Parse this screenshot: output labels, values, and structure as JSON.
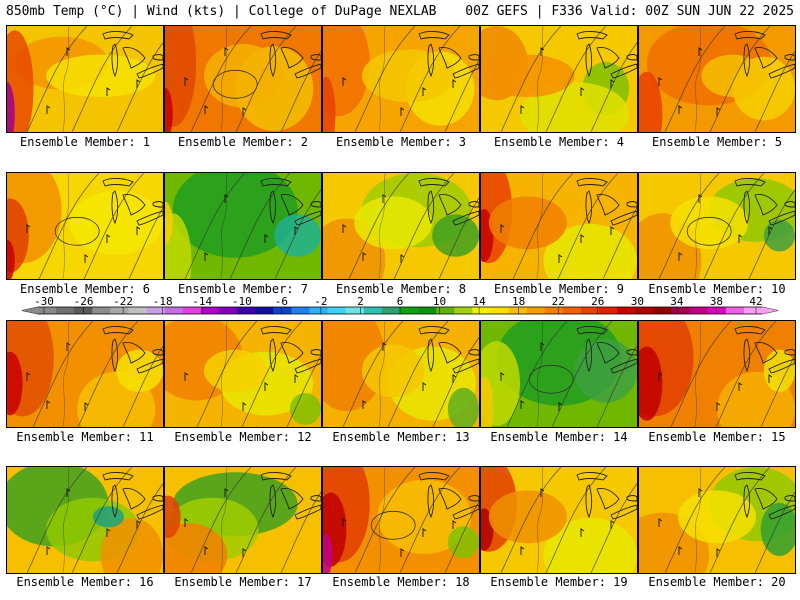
{
  "header": {
    "left": "850mb Temp (°C) | Wind (kts) | College of DuPage NEXLAB",
    "right": "00Z GEFS | F336 Valid: 00Z SUN JUN 22 2025"
  },
  "colorbar": {
    "labels": [
      "-30",
      "-26",
      "-22",
      "-18",
      "-14",
      "-10",
      "-6",
      "-2",
      "2",
      "6",
      "10",
      "14",
      "18",
      "22",
      "26",
      "30",
      "34",
      "38",
      "42"
    ],
    "colors": [
      "#8a8a8a",
      "#707070",
      "#5a5a5a",
      "#8c8c8c",
      "#a8a8a8",
      "#c0c0c0",
      "#c8a0e0",
      "#c070e0",
      "#e040e0",
      "#b000d0",
      "#8000c0",
      "#4000b0",
      "#1010a0",
      "#1040d0",
      "#2080f0",
      "#30b0f0",
      "#40d0f0",
      "#70e0e0",
      "#30c0b0",
      "#30a070",
      "#10a010",
      "#109010",
      "#60b010",
      "#a0d010",
      "#f0f000",
      "#f8e000",
      "#f8c000",
      "#f8a000",
      "#f08000",
      "#f06000",
      "#e84000",
      "#e02000",
      "#c80000",
      "#b00000",
      "#900000",
      "#a00050",
      "#c00080",
      "#e000c0",
      "#f060e0",
      "#f8a0f0"
    ]
  },
  "panels": [
    {
      "label": "Ensemble Member: 1",
      "bg": "#f5c400",
      "blobs": [
        {
          "c": "#f39400",
          "r": 0.35,
          "w": 0.3,
          "h": 0.25
        },
        {
          "c": "#e84a00",
          "r": 0.05,
          "w": 0.12,
          "h": 0.55
        },
        {
          "c": "#a0008a",
          "r": 0.0,
          "w": 0.05,
          "h": 0.3
        },
        {
          "c": "#f6e300",
          "r": 0.6,
          "w": 0.35,
          "h": 0.2
        }
      ]
    },
    {
      "label": "Ensemble Member: 2",
      "bg": "#f07800",
      "blobs": [
        {
          "c": "#e04800",
          "r": 0.05,
          "w": 0.15,
          "h": 0.6
        },
        {
          "c": "#f5c000",
          "r": 0.7,
          "w": 0.25,
          "h": 0.4
        },
        {
          "c": "#c80000",
          "r": 0.0,
          "w": 0.05,
          "h": 0.25
        },
        {
          "c": "#f5b000",
          "r": 0.5,
          "w": 0.25,
          "h": 0.3
        }
      ]
    },
    {
      "label": "Ensemble Member: 3",
      "bg": "#f6a400",
      "blobs": [
        {
          "c": "#f07000",
          "r": 0.1,
          "w": 0.2,
          "h": 0.5
        },
        {
          "c": "#f6e000",
          "r": 0.75,
          "w": 0.22,
          "h": 0.35
        },
        {
          "c": "#e84000",
          "r": 0.02,
          "w": 0.06,
          "h": 0.35
        },
        {
          "c": "#f5c800",
          "r": 0.55,
          "w": 0.3,
          "h": 0.25
        }
      ]
    },
    {
      "label": "Ensemble Member: 4",
      "bg": "#f6c800",
      "blobs": [
        {
          "c": "#f08800",
          "r": 0.1,
          "w": 0.2,
          "h": 0.35
        },
        {
          "c": "#80c000",
          "r": 0.8,
          "w": 0.15,
          "h": 0.25
        },
        {
          "c": "#e0e000",
          "r": 0.6,
          "w": 0.35,
          "h": 0.3
        },
        {
          "c": "#f49000",
          "r": 0.3,
          "w": 0.3,
          "h": 0.2
        }
      ]
    },
    {
      "label": "Ensemble Member: 5",
      "bg": "#f39a00",
      "blobs": [
        {
          "c": "#f07000",
          "r": 0.45,
          "w": 0.4,
          "h": 0.4
        },
        {
          "c": "#f6d000",
          "r": 0.8,
          "w": 0.2,
          "h": 0.3
        },
        {
          "c": "#e84000",
          "r": 0.05,
          "w": 0.1,
          "h": 0.4
        },
        {
          "c": "#f6c000",
          "r": 0.6,
          "w": 0.2,
          "h": 0.2
        }
      ]
    },
    {
      "label": "Ensemble Member: 6",
      "bg": "#f6d800",
      "blobs": [
        {
          "c": "#f09000",
          "r": 0.1,
          "w": 0.25,
          "h": 0.5
        },
        {
          "c": "#e04000",
          "r": 0.02,
          "w": 0.12,
          "h": 0.35
        },
        {
          "c": "#c80000",
          "r": 0.0,
          "w": 0.05,
          "h": 0.2
        },
        {
          "c": "#f6e800",
          "r": 0.7,
          "w": 0.3,
          "h": 0.3
        }
      ]
    },
    {
      "label": "Ensemble Member: 7",
      "bg": "#70b800",
      "blobs": [
        {
          "c": "#209c20",
          "r": 0.45,
          "w": 0.4,
          "h": 0.45
        },
        {
          "c": "#20b090",
          "r": 0.85,
          "w": 0.15,
          "h": 0.2
        },
        {
          "c": "#c0d800",
          "r": 0.05,
          "w": 0.12,
          "h": 0.45
        },
        {
          "c": "#f6d000",
          "r": 0.0,
          "w": 0.05,
          "h": 0.2
        }
      ]
    },
    {
      "label": "Ensemble Member: 8",
      "bg": "#f6c800",
      "blobs": [
        {
          "c": "#a0cc00",
          "r": 0.6,
          "w": 0.35,
          "h": 0.35
        },
        {
          "c": "#40a020",
          "r": 0.85,
          "w": 0.15,
          "h": 0.2
        },
        {
          "c": "#f09000",
          "r": 0.15,
          "w": 0.25,
          "h": 0.4
        },
        {
          "c": "#e8e800",
          "r": 0.45,
          "w": 0.25,
          "h": 0.25
        }
      ]
    },
    {
      "label": "Ensemble Member: 9",
      "bg": "#f6b400",
      "blobs": [
        {
          "c": "#e84000",
          "r": 0.05,
          "w": 0.15,
          "h": 0.5
        },
        {
          "c": "#c80000",
          "r": 0.02,
          "w": 0.06,
          "h": 0.25
        },
        {
          "c": "#e8e800",
          "r": 0.7,
          "w": 0.3,
          "h": 0.35
        },
        {
          "c": "#f08000",
          "r": 0.3,
          "w": 0.25,
          "h": 0.25
        }
      ]
    },
    {
      "label": "Ensemble Member: 10",
      "bg": "#f6c800",
      "blobs": [
        {
          "c": "#90c800",
          "r": 0.75,
          "w": 0.3,
          "h": 0.3
        },
        {
          "c": "#40a040",
          "r": 0.9,
          "w": 0.1,
          "h": 0.15
        },
        {
          "c": "#f09000",
          "r": 0.15,
          "w": 0.25,
          "h": 0.45
        },
        {
          "c": "#f6e000",
          "r": 0.45,
          "w": 0.25,
          "h": 0.25
        }
      ]
    },
    {
      "label": "Ensemble Member: 11",
      "bg": "#f39000",
      "blobs": [
        {
          "c": "#e05000",
          "r": 0.1,
          "w": 0.2,
          "h": 0.55
        },
        {
          "c": "#c80000",
          "r": 0.02,
          "w": 0.08,
          "h": 0.3
        },
        {
          "c": "#f6c000",
          "r": 0.7,
          "w": 0.25,
          "h": 0.35
        },
        {
          "c": "#f6e000",
          "r": 0.85,
          "w": 0.15,
          "h": 0.2
        }
      ]
    },
    {
      "label": "Ensemble Member: 12",
      "bg": "#f6b400",
      "blobs": [
        {
          "c": "#f08000",
          "r": 0.2,
          "w": 0.3,
          "h": 0.4
        },
        {
          "c": "#e8e800",
          "r": 0.65,
          "w": 0.3,
          "h": 0.3
        },
        {
          "c": "#80c000",
          "r": 0.9,
          "w": 0.1,
          "h": 0.15
        },
        {
          "c": "#f6d000",
          "r": 0.45,
          "w": 0.2,
          "h": 0.2
        }
      ]
    },
    {
      "label": "Ensemble Member: 13",
      "bg": "#f6b000",
      "blobs": [
        {
          "c": "#f08000",
          "r": 0.15,
          "w": 0.25,
          "h": 0.5
        },
        {
          "c": "#e8e800",
          "r": 0.7,
          "w": 0.28,
          "h": 0.35
        },
        {
          "c": "#60b020",
          "r": 0.9,
          "w": 0.1,
          "h": 0.2
        },
        {
          "c": "#f6c800",
          "r": 0.45,
          "w": 0.2,
          "h": 0.25
        }
      ]
    },
    {
      "label": "Ensemble Member: 14",
      "bg": "#70b800",
      "blobs": [
        {
          "c": "#209c20",
          "r": 0.5,
          "w": 0.4,
          "h": 0.45
        },
        {
          "c": "#c0d800",
          "r": 0.1,
          "w": 0.15,
          "h": 0.4
        },
        {
          "c": "#f6c800",
          "r": 0.02,
          "w": 0.06,
          "h": 0.3
        },
        {
          "c": "#40a040",
          "r": 0.8,
          "w": 0.2,
          "h": 0.3
        }
      ]
    },
    {
      "label": "Ensemble Member: 15",
      "bg": "#f08000",
      "blobs": [
        {
          "c": "#e04000",
          "r": 0.1,
          "w": 0.25,
          "h": 0.55
        },
        {
          "c": "#c00000",
          "r": 0.05,
          "w": 0.1,
          "h": 0.35
        },
        {
          "c": "#f6b000",
          "r": 0.75,
          "w": 0.25,
          "h": 0.35
        },
        {
          "c": "#f0e000",
          "r": 0.9,
          "w": 0.1,
          "h": 0.2
        }
      ]
    },
    {
      "label": "Ensemble Member: 16",
      "bg": "#f6c000",
      "blobs": [
        {
          "c": "#40a020",
          "r": 0.3,
          "w": 0.35,
          "h": 0.4
        },
        {
          "c": "#90c800",
          "r": 0.55,
          "w": 0.3,
          "h": 0.3
        },
        {
          "c": "#f09000",
          "r": 0.8,
          "w": 0.2,
          "h": 0.35
        },
        {
          "c": "#20a080",
          "r": 0.65,
          "w": 0.1,
          "h": 0.1
        }
      ]
    },
    {
      "label": "Ensemble Member: 17",
      "bg": "#f6c000",
      "blobs": [
        {
          "c": "#40a020",
          "r": 0.45,
          "w": 0.4,
          "h": 0.3
        },
        {
          "c": "#a0cc00",
          "r": 0.3,
          "w": 0.3,
          "h": 0.3
        },
        {
          "c": "#f08000",
          "r": 0.15,
          "w": 0.25,
          "h": 0.3
        },
        {
          "c": "#e04000",
          "r": 0.02,
          "w": 0.08,
          "h": 0.2
        }
      ]
    },
    {
      "label": "Ensemble Member: 18",
      "bg": "#f39000",
      "blobs": [
        {
          "c": "#e04000",
          "r": 0.1,
          "w": 0.2,
          "h": 0.55
        },
        {
          "c": "#c00000",
          "r": 0.05,
          "w": 0.1,
          "h": 0.35
        },
        {
          "c": "#c0008a",
          "r": 0.02,
          "w": 0.04,
          "h": 0.2
        },
        {
          "c": "#f6c000",
          "r": 0.65,
          "w": 0.3,
          "h": 0.35
        },
        {
          "c": "#80c000",
          "r": 0.9,
          "w": 0.1,
          "h": 0.15
        }
      ]
    },
    {
      "label": "Ensemble Member: 19",
      "bg": "#f6c800",
      "blobs": [
        {
          "c": "#e04000",
          "r": 0.05,
          "w": 0.18,
          "h": 0.45
        },
        {
          "c": "#b00000",
          "r": 0.02,
          "w": 0.06,
          "h": 0.2
        },
        {
          "c": "#e8e800",
          "r": 0.7,
          "w": 0.3,
          "h": 0.35
        },
        {
          "c": "#f09000",
          "r": 0.3,
          "w": 0.25,
          "h": 0.25
        }
      ]
    },
    {
      "label": "Ensemble Member: 20",
      "bg": "#f6c000",
      "blobs": [
        {
          "c": "#90c800",
          "r": 0.75,
          "w": 0.3,
          "h": 0.35
        },
        {
          "c": "#30a030",
          "r": 0.9,
          "w": 0.12,
          "h": 0.25
        },
        {
          "c": "#f09000",
          "r": 0.15,
          "w": 0.3,
          "h": 0.4
        },
        {
          "c": "#f6e000",
          "r": 0.5,
          "w": 0.25,
          "h": 0.25
        }
      ]
    }
  ]
}
